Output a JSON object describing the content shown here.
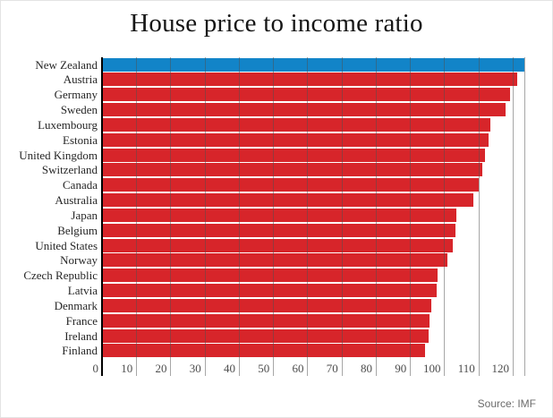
{
  "title": "House price to income ratio",
  "source": "Source: IMF",
  "chart_data": {
    "type": "bar",
    "orientation": "horizontal",
    "title": "House price to income ratio",
    "xlabel": "",
    "ylabel": "",
    "categories": [
      "New Zealand",
      "Austria",
      "Germany",
      "Sweden",
      "Luxembourg",
      "Estonia",
      "United Kingdom",
      "Switzerland",
      "Canada",
      "Australia",
      "Japan",
      "Belgium",
      "United States",
      "Norway",
      "Czech Republic",
      "Latvia",
      "Denmark",
      "France",
      "Ireland",
      "Finland"
    ],
    "values": [
      123.4,
      121.3,
      119.2,
      118.0,
      113.4,
      113.0,
      112.0,
      111.0,
      110.0,
      108.5,
      103.5,
      103.2,
      102.4,
      100.9,
      98.1,
      97.9,
      96.3,
      95.8,
      95.4,
      94.5
    ],
    "x_ticks": [
      0,
      10,
      20,
      30,
      40,
      50,
      60,
      70,
      80,
      90,
      100,
      110,
      120
    ],
    "xlim": [
      0,
      123.4
    ],
    "grid": true,
    "legend": "none",
    "bar_color": "#d7252a",
    "highlight_category": "New Zealand",
    "highlight_color": "#1284c8",
    "axis_color": "#000000",
    "gridline_color": "#999999",
    "source_note": "Source: IMF"
  }
}
